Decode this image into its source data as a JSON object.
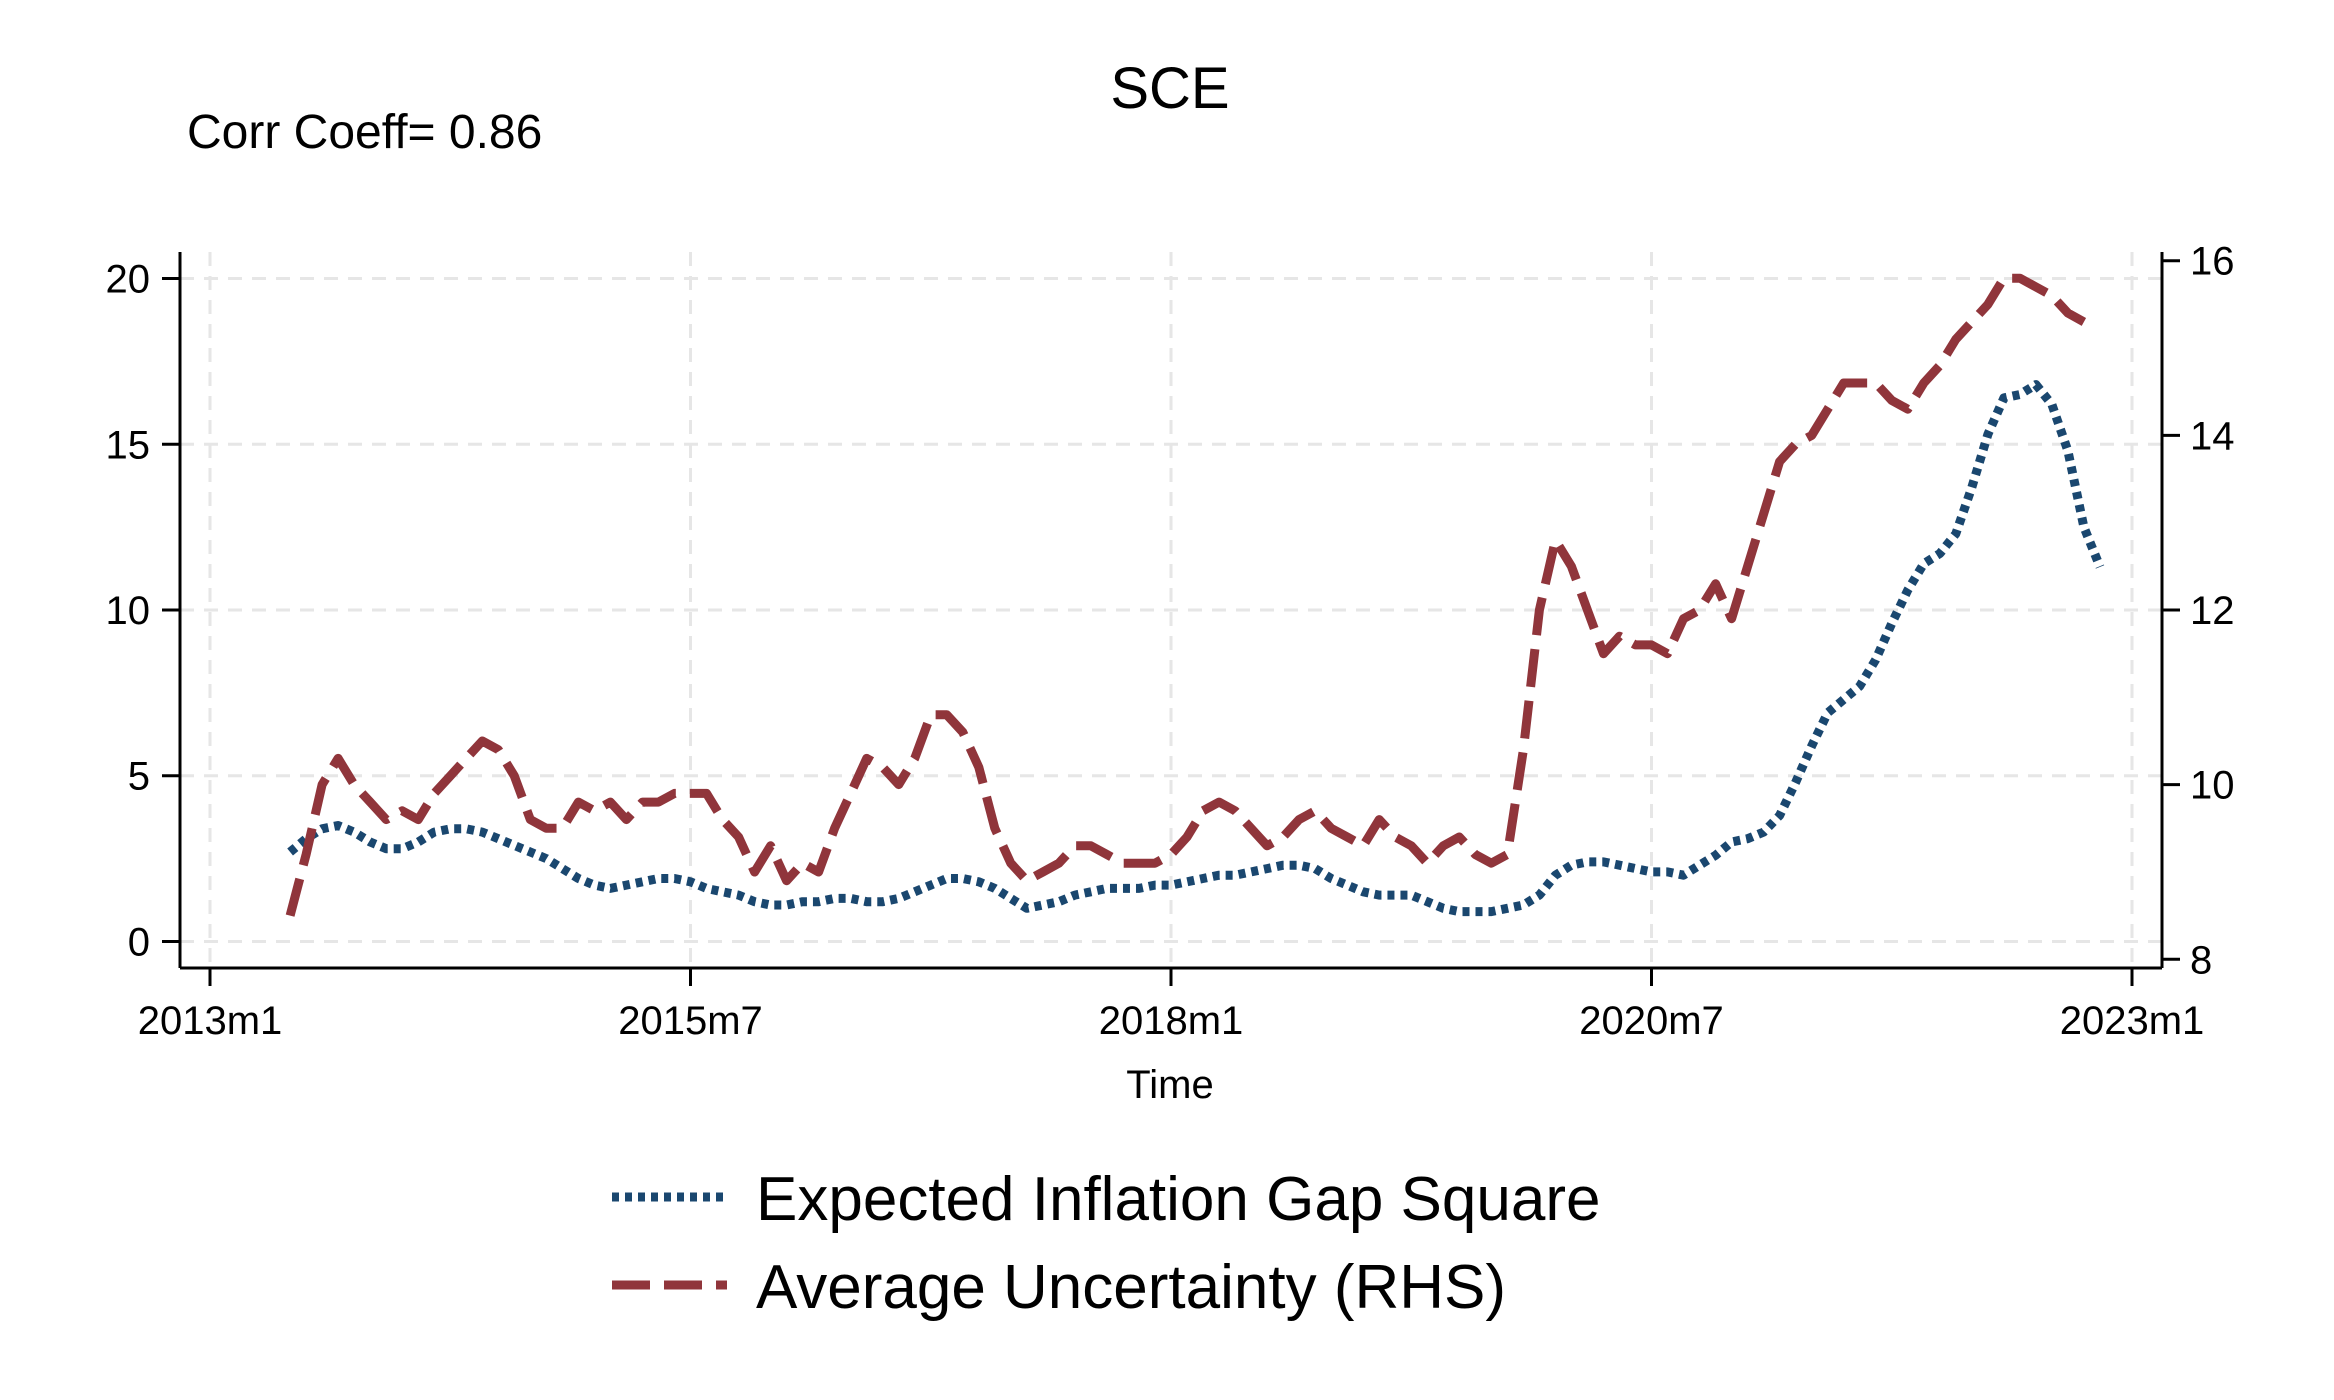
{
  "chart_data": {
    "type": "line",
    "title": "SCE",
    "annotation": "Corr Coeff= 0.86",
    "xlabel": "Time",
    "x_range": [
      "2013m1",
      "2023m1"
    ],
    "x_ticks": [
      "2013m1",
      "2015m7",
      "2018m1",
      "2020m7",
      "2023m1"
    ],
    "y_left": {
      "range": [
        -0.8,
        20.8
      ],
      "ticks": [
        "0",
        "5",
        "10",
        "15",
        "20"
      ]
    },
    "y_right": {
      "range": [
        7.9,
        16.1
      ],
      "ticks": [
        "8",
        "10",
        "12",
        "14",
        "16"
      ]
    },
    "grid": true,
    "legend_position": "bottom",
    "series": [
      {
        "name": "Expected Inflation Gap Square",
        "axis": "left",
        "style": "dotted",
        "color": "#1a476f",
        "points": [
          [
            "2013m6",
            2.7
          ],
          [
            "2013m7",
            3.1
          ],
          [
            "2013m8",
            3.4
          ],
          [
            "2013m9",
            3.5
          ],
          [
            "2013m10",
            3.3
          ],
          [
            "2013m11",
            3.0
          ],
          [
            "2013m12",
            2.8
          ],
          [
            "2014m1",
            2.8
          ],
          [
            "2014m2",
            3.0
          ],
          [
            "2014m3",
            3.3
          ],
          [
            "2014m4",
            3.4
          ],
          [
            "2014m5",
            3.4
          ],
          [
            "2014m6",
            3.3
          ],
          [
            "2014m7",
            3.1
          ],
          [
            "2014m8",
            2.9
          ],
          [
            "2014m9",
            2.7
          ],
          [
            "2014m10",
            2.5
          ],
          [
            "2014m11",
            2.2
          ],
          [
            "2014m12",
            1.9
          ],
          [
            "2015m1",
            1.7
          ],
          [
            "2015m2",
            1.6
          ],
          [
            "2015m3",
            1.7
          ],
          [
            "2015m4",
            1.8
          ],
          [
            "2015m5",
            1.9
          ],
          [
            "2015m6",
            1.9
          ],
          [
            "2015m7",
            1.8
          ],
          [
            "2015m8",
            1.6
          ],
          [
            "2015m9",
            1.5
          ],
          [
            "2015m10",
            1.4
          ],
          [
            "2015m11",
            1.2
          ],
          [
            "2015m12",
            1.1
          ],
          [
            "2016m1",
            1.1
          ],
          [
            "2016m2",
            1.2
          ],
          [
            "2016m3",
            1.2
          ],
          [
            "2016m4",
            1.3
          ],
          [
            "2016m5",
            1.3
          ],
          [
            "2016m6",
            1.2
          ],
          [
            "2016m7",
            1.2
          ],
          [
            "2016m8",
            1.3
          ],
          [
            "2016m9",
            1.5
          ],
          [
            "2016m10",
            1.7
          ],
          [
            "2016m11",
            1.9
          ],
          [
            "2016m12",
            1.9
          ],
          [
            "2017m1",
            1.8
          ],
          [
            "2017m2",
            1.6
          ],
          [
            "2017m3",
            1.3
          ],
          [
            "2017m4",
            1.0
          ],
          [
            "2017m5",
            1.1
          ],
          [
            "2017m6",
            1.2
          ],
          [
            "2017m7",
            1.4
          ],
          [
            "2017m8",
            1.5
          ],
          [
            "2017m9",
            1.6
          ],
          [
            "2017m10",
            1.6
          ],
          [
            "2017m11",
            1.6
          ],
          [
            "2017m12",
            1.7
          ],
          [
            "2018m1",
            1.7
          ],
          [
            "2018m2",
            1.8
          ],
          [
            "2018m3",
            1.9
          ],
          [
            "2018m4",
            2.0
          ],
          [
            "2018m5",
            2.0
          ],
          [
            "2018m6",
            2.1
          ],
          [
            "2018m7",
            2.2
          ],
          [
            "2018m8",
            2.3
          ],
          [
            "2018m9",
            2.3
          ],
          [
            "2018m10",
            2.2
          ],
          [
            "2018m11",
            1.9
          ],
          [
            "2018m12",
            1.7
          ],
          [
            "2019m1",
            1.5
          ],
          [
            "2019m2",
            1.4
          ],
          [
            "2019m3",
            1.4
          ],
          [
            "2019m4",
            1.4
          ],
          [
            "2019m5",
            1.2
          ],
          [
            "2019m6",
            1.0
          ],
          [
            "2019m7",
            0.9
          ],
          [
            "2019m8",
            0.9
          ],
          [
            "2019m9",
            0.9
          ],
          [
            "2019m10",
            1.0
          ],
          [
            "2019m11",
            1.1
          ],
          [
            "2019m12",
            1.4
          ],
          [
            "2020m1",
            2.0
          ],
          [
            "2020m2",
            2.3
          ],
          [
            "2020m3",
            2.4
          ],
          [
            "2020m4",
            2.4
          ],
          [
            "2020m5",
            2.3
          ],
          [
            "2020m6",
            2.2
          ],
          [
            "2020m7",
            2.1
          ],
          [
            "2020m8",
            2.1
          ],
          [
            "2020m9",
            2.0
          ],
          [
            "2020m10",
            2.3
          ],
          [
            "2020m11",
            2.6
          ],
          [
            "2020m12",
            3.0
          ],
          [
            "2021m1",
            3.1
          ],
          [
            "2021m2",
            3.3
          ],
          [
            "2021m3",
            3.8
          ],
          [
            "2021m4",
            4.8
          ],
          [
            "2021m5",
            5.9
          ],
          [
            "2021m6",
            6.9
          ],
          [
            "2021m7",
            7.3
          ],
          [
            "2021m8",
            7.7
          ],
          [
            "2021m9",
            8.5
          ],
          [
            "2021m10",
            9.6
          ],
          [
            "2021m11",
            10.6
          ],
          [
            "2021m12",
            11.4
          ],
          [
            "2022m1",
            11.7
          ],
          [
            "2022m2",
            12.3
          ],
          [
            "2022m3",
            13.7
          ],
          [
            "2022m4",
            15.3
          ],
          [
            "2022m5",
            16.4
          ],
          [
            "2022m6",
            16.5
          ],
          [
            "2022m7",
            16.8
          ],
          [
            "2022m8",
            16.2
          ],
          [
            "2022m9",
            14.8
          ],
          [
            "2022m10",
            12.5
          ],
          [
            "2022m11",
            11.3
          ]
        ]
      },
      {
        "name": "Average Uncertainty (RHS)",
        "axis": "right",
        "style": "dashed",
        "color": "#90353b",
        "points": [
          [
            "2013m6",
            8.5
          ],
          [
            "2013m7",
            9.2
          ],
          [
            "2013m8",
            10.0
          ],
          [
            "2013m9",
            10.3
          ],
          [
            "2013m10",
            10.0
          ],
          [
            "2013m11",
            9.8
          ],
          [
            "2013m12",
            9.6
          ],
          [
            "2014m1",
            9.7
          ],
          [
            "2014m2",
            9.6
          ],
          [
            "2014m3",
            9.9
          ],
          [
            "2014m4",
            10.1
          ],
          [
            "2014m5",
            10.3
          ],
          [
            "2014m6",
            10.5
          ],
          [
            "2014m7",
            10.4
          ],
          [
            "2014m8",
            10.1
          ],
          [
            "2014m9",
            9.6
          ],
          [
            "2014m10",
            9.5
          ],
          [
            "2014m11",
            9.5
          ],
          [
            "2014m12",
            9.8
          ],
          [
            "2015m1",
            9.7
          ],
          [
            "2015m2",
            9.8
          ],
          [
            "2015m3",
            9.6
          ],
          [
            "2015m4",
            9.8
          ],
          [
            "2015m5",
            9.8
          ],
          [
            "2015m6",
            9.9
          ],
          [
            "2015m7",
            9.9
          ],
          [
            "2015m8",
            9.9
          ],
          [
            "2015m9",
            9.6
          ],
          [
            "2015m10",
            9.4
          ],
          [
            "2015m11",
            9.0
          ],
          [
            "2015m12",
            9.3
          ],
          [
            "2016m1",
            8.9
          ],
          [
            "2016m2",
            9.1
          ],
          [
            "2016m3",
            9.0
          ],
          [
            "2016m4",
            9.5
          ],
          [
            "2016m5",
            9.9
          ],
          [
            "2016m6",
            10.3
          ],
          [
            "2016m7",
            10.2
          ],
          [
            "2016m8",
            10.0
          ],
          [
            "2016m9",
            10.3
          ],
          [
            "2016m10",
            10.8
          ],
          [
            "2016m11",
            10.8
          ],
          [
            "2016m12",
            10.6
          ],
          [
            "2017m1",
            10.2
          ],
          [
            "2017m2",
            9.5
          ],
          [
            "2017m3",
            9.1
          ],
          [
            "2017m4",
            8.9
          ],
          [
            "2017m5",
            9.0
          ],
          [
            "2017m6",
            9.1
          ],
          [
            "2017m7",
            9.3
          ],
          [
            "2017m8",
            9.3
          ],
          [
            "2017m9",
            9.2
          ],
          [
            "2017m10",
            9.1
          ],
          [
            "2017m11",
            9.1
          ],
          [
            "2017m12",
            9.1
          ],
          [
            "2018m1",
            9.2
          ],
          [
            "2018m2",
            9.4
          ],
          [
            "2018m3",
            9.7
          ],
          [
            "2018m4",
            9.8
          ],
          [
            "2018m5",
            9.7
          ],
          [
            "2018m6",
            9.5
          ],
          [
            "2018m7",
            9.3
          ],
          [
            "2018m8",
            9.4
          ],
          [
            "2018m9",
            9.6
          ],
          [
            "2018m10",
            9.7
          ],
          [
            "2018m11",
            9.5
          ],
          [
            "2018m12",
            9.4
          ],
          [
            "2019m1",
            9.3
          ],
          [
            "2019m2",
            9.6
          ],
          [
            "2019m3",
            9.4
          ],
          [
            "2019m4",
            9.3
          ],
          [
            "2019m5",
            9.1
          ],
          [
            "2019m6",
            9.3
          ],
          [
            "2019m7",
            9.4
          ],
          [
            "2019m8",
            9.2
          ],
          [
            "2019m9",
            9.1
          ],
          [
            "2019m10",
            9.2
          ],
          [
            "2019m11",
            10.4
          ],
          [
            "2019m12",
            12.0
          ],
          [
            "2020m1",
            12.8
          ],
          [
            "2020m2",
            12.5
          ],
          [
            "2020m3",
            12.0
          ],
          [
            "2020m4",
            11.5
          ],
          [
            "2020m5",
            11.7
          ],
          [
            "2020m6",
            11.6
          ],
          [
            "2020m7",
            11.6
          ],
          [
            "2020m8",
            11.5
          ],
          [
            "2020m9",
            11.9
          ],
          [
            "2020m10",
            12.0
          ],
          [
            "2020m11",
            12.3
          ],
          [
            "2020m12",
            11.9
          ],
          [
            "2021m1",
            12.5
          ],
          [
            "2021m2",
            13.1
          ],
          [
            "2021m3",
            13.7
          ],
          [
            "2021m4",
            13.9
          ],
          [
            "2021m5",
            14.0
          ],
          [
            "2021m6",
            14.3
          ],
          [
            "2021m7",
            14.6
          ],
          [
            "2021m8",
            14.6
          ],
          [
            "2021m9",
            14.6
          ],
          [
            "2021m10",
            14.4
          ],
          [
            "2021m11",
            14.3
          ],
          [
            "2021m12",
            14.6
          ],
          [
            "2022m1",
            14.8
          ],
          [
            "2022m2",
            15.1
          ],
          [
            "2022m3",
            15.3
          ],
          [
            "2022m4",
            15.5
          ],
          [
            "2022m5",
            15.8
          ],
          [
            "2022m6",
            15.8
          ],
          [
            "2022m7",
            15.7
          ],
          [
            "2022m8",
            15.6
          ],
          [
            "2022m9",
            15.4
          ],
          [
            "2022m10",
            15.3
          ]
        ]
      }
    ]
  }
}
